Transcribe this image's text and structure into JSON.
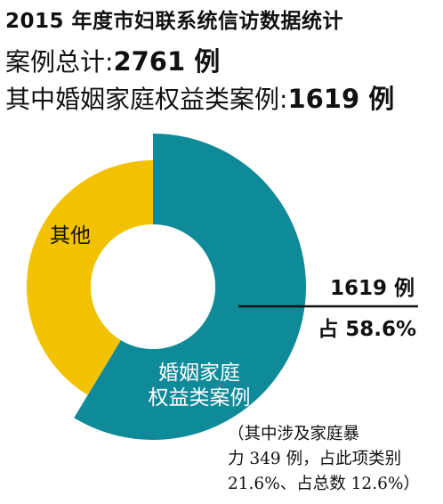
{
  "header": {
    "title": "2015 年度市妇联系统信访数据统计",
    "total_label": "案例总计:",
    "total_value": "2761 例",
    "subset_label": "其中婚姻家庭权益类案例:",
    "subset_value": "1619 例"
  },
  "chart_data": {
    "type": "pie",
    "title": "",
    "slices": [
      {
        "name": "婚姻家庭权益类案例",
        "value": 1619,
        "color": "#0f8a99",
        "label_lines": [
          "婚姻家庭",
          "权益类案例"
        ]
      },
      {
        "name": "其他",
        "value": 1142,
        "color": "#f2c200",
        "label_lines": [
          "其他"
        ]
      }
    ],
    "callout": {
      "count": "1619 例",
      "percent": "占 58.6%"
    }
  },
  "note": {
    "lines": [
      "（其中涉及家庭暴",
      "力 349 例，占此项类别",
      "21.6%、占总数 12.6%）"
    ]
  }
}
